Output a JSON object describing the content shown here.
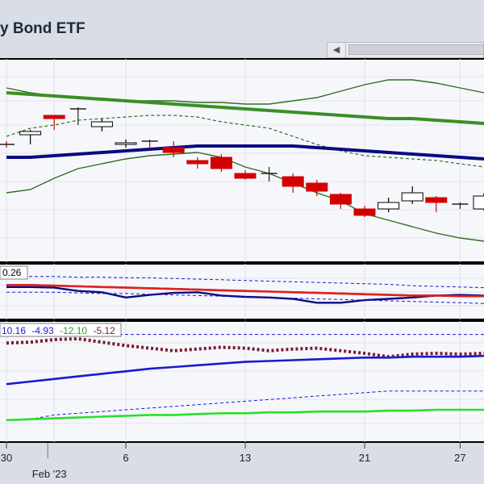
{
  "title": "y Bond ETF",
  "colors": {
    "up_candle": "#ffffff",
    "down_candle": "#d40000",
    "ma_green": "#3a8f25",
    "ma_navy": "#0a0a80",
    "band": "#2e6e22",
    "rsi_red": "#e02020",
    "dots": "#7a1c2e",
    "bright_green": "#28e028",
    "blue_line": "#1a1ad0"
  },
  "xaxis": {
    "ticks": [
      {
        "label": "30",
        "x": 0
      },
      {
        "label": "6",
        "x": 5
      },
      {
        "label": "13",
        "x": 10
      },
      {
        "label": "21",
        "x": 15
      },
      {
        "label": "27",
        "x": 19
      }
    ],
    "month_label": "Feb '23"
  },
  "indicator1": {
    "label": "0.26"
  },
  "indicator2": {
    "values": [
      "10.16",
      "-4.93",
      "-12.10",
      "-5.12"
    ]
  },
  "chart_data": [
    {
      "type": "candlestick",
      "candles": [
        {
          "x": 0,
          "o": 70,
          "c": 70,
          "h": 72,
          "l": 68
        },
        {
          "x": 1,
          "o": 76,
          "c": 78,
          "h": 79,
          "l": 70
        },
        {
          "x": 2,
          "o": 88,
          "c": 86,
          "h": 87,
          "l": 79
        },
        {
          "x": 3,
          "o": 92,
          "c": 92,
          "h": 93,
          "l": 82
        },
        {
          "x": 4,
          "o": 81,
          "c": 84,
          "h": 86,
          "l": 78
        },
        {
          "x": 5,
          "o": 70,
          "c": 71,
          "h": 73,
          "l": 68
        },
        {
          "x": 6,
          "o": 72,
          "c": 72,
          "h": 73,
          "l": 67
        },
        {
          "x": 7,
          "o": 68,
          "c": 65,
          "h": 72,
          "l": 62
        },
        {
          "x": 8,
          "o": 60,
          "c": 58,
          "h": 62,
          "l": 55
        },
        {
          "x": 9,
          "o": 62,
          "c": 55,
          "h": 64,
          "l": 53
        },
        {
          "x": 10,
          "o": 52,
          "c": 49,
          "h": 54,
          "l": 48
        },
        {
          "x": 11,
          "o": 52,
          "c": 52,
          "h": 56,
          "l": 47
        },
        {
          "x": 12,
          "o": 50,
          "c": 44,
          "h": 52,
          "l": 40
        },
        {
          "x": 13,
          "o": 46,
          "c": 41,
          "h": 48,
          "l": 38
        },
        {
          "x": 14,
          "o": 39,
          "c": 33,
          "h": 40,
          "l": 30
        },
        {
          "x": 15,
          "o": 30,
          "c": 26,
          "h": 32,
          "l": 25
        },
        {
          "x": 16,
          "o": 30,
          "c": 34,
          "h": 37,
          "l": 28
        },
        {
          "x": 17,
          "o": 35,
          "c": 40,
          "h": 44,
          "l": 33
        },
        {
          "x": 18,
          "o": 37,
          "c": 34,
          "h": 38,
          "l": 28
        },
        {
          "x": 19,
          "o": 33,
          "c": 33,
          "h": 34,
          "l": 30
        },
        {
          "x": 20,
          "o": 30,
          "c": 38,
          "h": 40,
          "l": 29
        }
      ],
      "ma_green": [
        102,
        101,
        100,
        99,
        98,
        97,
        96,
        95,
        94,
        93,
        92,
        91,
        90,
        89,
        88,
        87,
        86,
        86,
        85,
        84,
        83
      ],
      "ma_navy": [
        62,
        62,
        63,
        64,
        65,
        66,
        67,
        68,
        69,
        69,
        69,
        69,
        69,
        68,
        67,
        66,
        65,
        64,
        63,
        62,
        61
      ],
      "upper_band": [
        105,
        102,
        100,
        99,
        98,
        97,
        97,
        97,
        96,
        96,
        95,
        95,
        97,
        99,
        103,
        107,
        110,
        110,
        108,
        105,
        102
      ],
      "middle_band": [
        75,
        80,
        82,
        85,
        86,
        87,
        88,
        88,
        87,
        84,
        82,
        80,
        75,
        70,
        66,
        63,
        62,
        61,
        60,
        58,
        56
      ],
      "lower_band": [
        40,
        42,
        49,
        55,
        58,
        61,
        63,
        64,
        65,
        62,
        56,
        52,
        46,
        40,
        35,
        27,
        23,
        19,
        15,
        12,
        10
      ],
      "ylim": [
        0,
        120
      ]
    },
    {
      "type": "line",
      "series": [
        {
          "values": [
            66,
            66,
            65,
            64,
            63,
            62,
            61,
            60,
            59,
            58,
            57,
            56,
            55,
            54,
            53,
            52,
            51,
            50,
            50,
            49,
            49
          ]
        },
        {
          "values": [
            62,
            62,
            61,
            56,
            54,
            46,
            50,
            53,
            54,
            49,
            47,
            46,
            44,
            38,
            38,
            42,
            44,
            46,
            49,
            50,
            49
          ]
        },
        {
          "values": [
            78,
            78,
            78,
            77,
            77,
            76,
            76,
            75,
            74,
            73,
            72,
            71,
            70,
            69,
            68,
            67,
            66,
            64,
            63,
            62,
            61
          ]
        },
        {
          "values": [
            54,
            54,
            54,
            53,
            52,
            52,
            51,
            50,
            49,
            48,
            47,
            46,
            45,
            44,
            43,
            42,
            41,
            40,
            39,
            38,
            37
          ]
        }
      ],
      "ylim": [
        20,
        90
      ]
    },
    {
      "type": "line",
      "series": [
        {
          "values": [
            10,
            11,
            14,
            15,
            11,
            7,
            4,
            1,
            3,
            5,
            4,
            1,
            3,
            4,
            1,
            -2,
            -6,
            -3,
            -2,
            -3,
            -2
          ]
        },
        {
          "values": [
            -38,
            -35,
            -32,
            -29,
            -26,
            -23,
            -20,
            -18,
            -16,
            -14,
            -12,
            -11,
            -10,
            -9,
            -8,
            -7,
            -7,
            -6,
            -6,
            -6,
            -5
          ]
        },
        {
          "values": [
            -80,
            -79,
            -78,
            -77,
            -76,
            -75,
            -74,
            -74,
            -73,
            -72,
            -72,
            -71,
            -71,
            -70,
            -70,
            -70,
            -69,
            -69,
            -68,
            -68,
            -68
          ]
        },
        {
          "values": [
            -80,
            -79,
            -74,
            -72,
            -70,
            -68,
            -66,
            -64,
            -62,
            -60,
            -58,
            -56,
            -54,
            -52,
            -50,
            -48,
            -46,
            -46,
            -46,
            -46,
            -46
          ]
        },
        {
          "values": [
            20,
            20,
            20,
            20,
            20,
            20,
            20,
            20,
            20,
            20,
            20,
            20,
            20,
            20,
            20,
            20,
            20,
            20,
            20,
            20,
            20
          ]
        }
      ],
      "ylim": [
        -100,
        30
      ]
    }
  ]
}
